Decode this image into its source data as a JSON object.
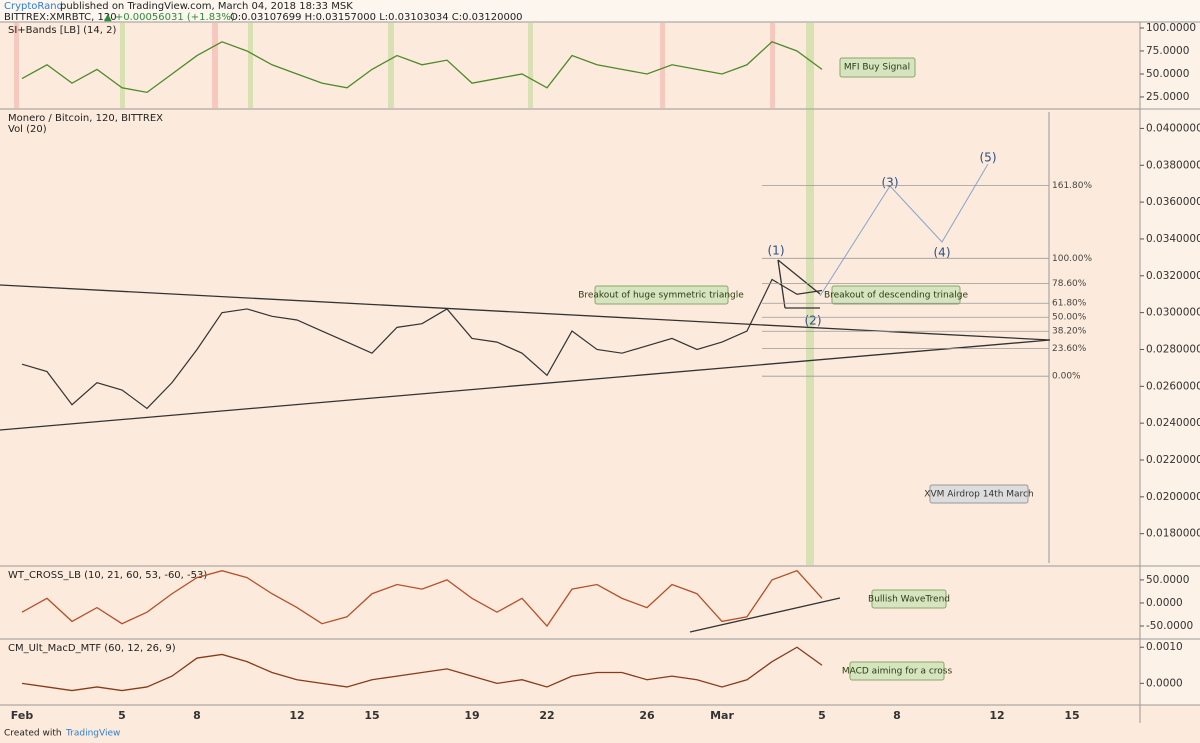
{
  "header": {
    "author": "CryptoRand",
    "published": "published on TradingView.com, March 04, 2018 18:33 MSK",
    "symbol": "BITTREX:XMRBTC, 120",
    "change": "▲ +0.00056031 (+1.83%)",
    "ohlc": "O:0.03107699 H:0.03157000 L:0.03103034 C:0.03120000"
  },
  "annotations": [
    "MFI Buy Signal",
    "Breakout of huge symmetric triangle",
    "Breakout of descending trinalge",
    "XVM Airdrop 14th March",
    "Bullish WaveTrend",
    "MACD aiming for a cross"
  ],
  "waves": [
    "(1)",
    "(2)",
    "(3)",
    "(4)",
    "(5)"
  ],
  "footer": {
    "created": "Created with",
    "brand": "TradingView"
  },
  "fib": [
    {
      "value": 0.03691,
      "label": "161.80%"
    },
    {
      "value": 0.03295,
      "label": "100.00%"
    },
    {
      "value": 0.03158,
      "label": "78.60%"
    },
    {
      "value": 0.03051,
      "label": "61.80%"
    },
    {
      "value": 0.02975,
      "label": "50.00%"
    },
    {
      "value": 0.02899,
      "label": "38.20%"
    },
    {
      "value": 0.02806,
      "label": "23.60%"
    },
    {
      "value": 0.02655,
      "label": "0.00%"
    }
  ],
  "chart_data": [
    {
      "type": "line",
      "title": "SI+Bands [LB] (14, 2)",
      "x": [
        0,
        1,
        2,
        3,
        4,
        5,
        6,
        7,
        8,
        9,
        10,
        11,
        12,
        13,
        14,
        15,
        16,
        17,
        18,
        19,
        20,
        21,
        22,
        23,
        24,
        25,
        26,
        27,
        28,
        29,
        30,
        31,
        32
      ],
      "series": [
        {
          "name": "SI",
          "color": "#4c8a2a",
          "values": [
            45,
            60,
            40,
            55,
            35,
            30,
            50,
            70,
            85,
            75,
            60,
            50,
            40,
            35,
            55,
            70,
            60,
            65,
            40,
            45,
            50,
            35,
            70,
            60,
            55,
            50,
            60,
            55,
            50,
            60,
            85,
            75,
            55
          ]
        }
      ],
      "ylim": [
        13,
        106.5
      ],
      "yticks": [
        {
          "value": 100,
          "label": "100.0000"
        },
        {
          "value": 75,
          "label": "75.0000"
        },
        {
          "value": 50,
          "label": "50.0000"
        },
        {
          "value": 25,
          "label": "25.0000"
        }
      ]
    },
    {
      "type": "line",
      "title": "Monero / Bitcoin, 120, BITTREX",
      "subtitle": "Vol (20)",
      "x": [
        0,
        1,
        2,
        3,
        4,
        5,
        6,
        7,
        8,
        9,
        10,
        11,
        12,
        13,
        14,
        15,
        16,
        17,
        18,
        19,
        20,
        21,
        22,
        23,
        24,
        25,
        26,
        27,
        28,
        29,
        30,
        31,
        32
      ],
      "series": [
        {
          "name": "XMRBTC",
          "color": "#333333",
          "values": [
            0.0272,
            0.0268,
            0.025,
            0.0262,
            0.0258,
            0.0248,
            0.0262,
            0.028,
            0.03,
            0.0302,
            0.0298,
            0.0296,
            0.029,
            0.0284,
            0.0278,
            0.0292,
            0.0294,
            0.0302,
            0.0286,
            0.0284,
            0.0278,
            0.0266,
            0.029,
            0.028,
            0.0278,
            0.0282,
            0.0286,
            0.028,
            0.0284,
            0.029,
            0.0318,
            0.031,
            0.0312
          ]
        }
      ],
      "ylim": [
        0.0163,
        0.041
      ],
      "yticks": [
        {
          "value": 0.04,
          "label": "0.04000000"
        },
        {
          "value": 0.038,
          "label": "0.03800000"
        },
        {
          "value": 0.036,
          "label": "0.03600000"
        },
        {
          "value": 0.034,
          "label": "0.03400000"
        },
        {
          "value": 0.032,
          "label": "0.03200000"
        },
        {
          "value": 0.03,
          "label": "0.03000000"
        },
        {
          "value": 0.028,
          "label": "0.02800000"
        },
        {
          "value": 0.026,
          "label": "0.02600000"
        },
        {
          "value": 0.024,
          "label": "0.02400000"
        },
        {
          "value": 0.022,
          "label": "0.02200000"
        },
        {
          "value": 0.02,
          "label": "0.02000000"
        },
        {
          "value": 0.018,
          "label": "0.01800000"
        }
      ],
      "xlim": [
        -0.88,
        44.72
      ],
      "xticks": [
        {
          "value": 0,
          "label": "Feb"
        },
        {
          "value": 4,
          "label": "5"
        },
        {
          "value": 7,
          "label": "8"
        },
        {
          "value": 11,
          "label": "12"
        },
        {
          "value": 14,
          "label": "15"
        },
        {
          "value": 18,
          "label": "19"
        },
        {
          "value": 21,
          "label": "22"
        },
        {
          "value": 25,
          "label": "26"
        },
        {
          "value": 28,
          "label": "Mar"
        },
        {
          "value": 32,
          "label": "5"
        },
        {
          "value": 35,
          "label": "8"
        },
        {
          "value": 39,
          "label": "12"
        },
        {
          "value": 42,
          "label": "15"
        }
      ]
    },
    {
      "type": "line",
      "title": "WT_CROSS_LB (10, 21, 60, 53, -60, -53)",
      "x": [
        0,
        1,
        2,
        3,
        4,
        5,
        6,
        7,
        8,
        9,
        10,
        11,
        12,
        13,
        14,
        15,
        16,
        17,
        18,
        19,
        20,
        21,
        22,
        23,
        24,
        25,
        26,
        27,
        28,
        29,
        30,
        31,
        32
      ],
      "series": [
        {
          "name": "WT",
          "color": "#b5502a",
          "values": [
            -20,
            10,
            -40,
            -10,
            -45,
            -20,
            20,
            55,
            70,
            55,
            20,
            -10,
            -45,
            -30,
            20,
            40,
            30,
            50,
            10,
            -20,
            10,
            -50,
            30,
            40,
            10,
            -10,
            40,
            20,
            -40,
            -30,
            50,
            70,
            10
          ]
        }
      ],
      "ylim": [
        -76,
        78
      ],
      "yticks": [
        {
          "value": 50,
          "label": "50.0000"
        },
        {
          "value": 0,
          "label": "0.0000"
        },
        {
          "value": -50,
          "label": "-50.0000"
        }
      ]
    },
    {
      "type": "line",
      "title": "CM_Ult_MacD_MTF (60, 12, 26, 9)",
      "x": [
        0,
        1,
        2,
        3,
        4,
        5,
        6,
        7,
        8,
        9,
        10,
        11,
        12,
        13,
        14,
        15,
        16,
        17,
        18,
        19,
        20,
        21,
        22,
        23,
        24,
        25,
        26,
        27,
        28,
        29,
        30,
        31,
        32
      ],
      "series": [
        {
          "name": "MACD",
          "color": "#8a3a1a",
          "values": [
            0,
            -0.0001,
            -0.0002,
            -0.0001,
            -0.0002,
            -0.0001,
            0.0002,
            0.0007,
            0.0008,
            0.0006,
            0.0003,
            0.0001,
            0,
            -0.0001,
            0.0001,
            0.0002,
            0.0003,
            0.0004,
            0.0002,
            0,
            0.0001,
            -0.0001,
            0.0002,
            0.0003,
            0.0003,
            0.0001,
            0.0002,
            0.0001,
            -0.0001,
            0.0001,
            0.0006,
            0.001,
            0.0005
          ]
        }
      ],
      "ylim": [
        -0.0006,
        0.0012
      ],
      "yticks": [
        {
          "value": 0.001,
          "label": "0.0010"
        },
        {
          "value": 0,
          "label": "0.0000"
        }
      ]
    }
  ]
}
